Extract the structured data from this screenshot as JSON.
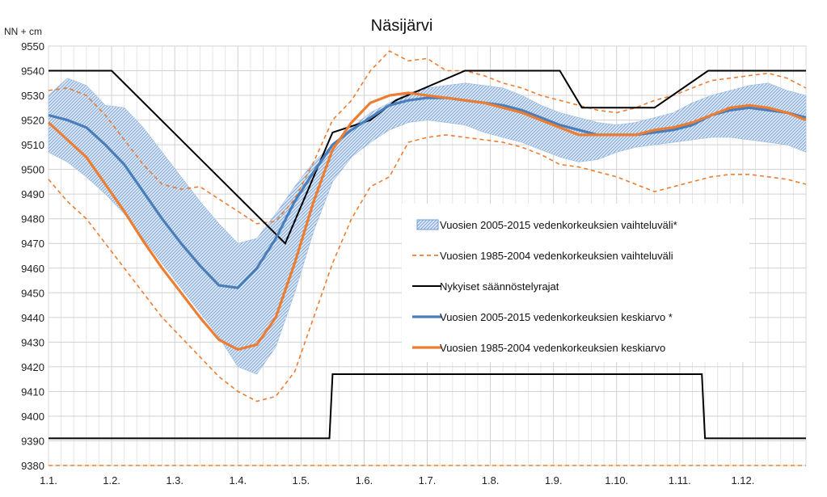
{
  "chart_data": {
    "type": "line",
    "title": "Näsijärvi",
    "ylabel": "NN + cm",
    "ylim": [
      9380,
      9550
    ],
    "yticks": [
      9380,
      9390,
      9400,
      9410,
      9420,
      9430,
      9440,
      9450,
      9460,
      9470,
      9480,
      9490,
      9500,
      9510,
      9520,
      9530,
      9540,
      9550
    ],
    "xlim": [
      0,
      12
    ],
    "categories": [
      "1.1.",
      "1.2.",
      "1.3.",
      "1.4.",
      "1.5.",
      "1.6.",
      "1.7.",
      "1.8.",
      "1.9.",
      "1.10.",
      "1.11.",
      "1.12."
    ],
    "grid": true,
    "legend_position": "center-right",
    "series": [
      {
        "name": "Vuosien 2005-2015 vedenkorkeuksien vaihteluväli*",
        "kind": "band",
        "color": "#4a7ebb",
        "fill": "#c9dcf0",
        "x": [
          0,
          0.3,
          0.6,
          0.9,
          1.2,
          1.5,
          1.8,
          2.1,
          2.4,
          2.7,
          3.0,
          3.3,
          3.6,
          3.9,
          4.2,
          4.5,
          4.8,
          5.1,
          5.4,
          5.7,
          6.0,
          6.3,
          6.6,
          6.9,
          7.2,
          7.5,
          7.8,
          8.1,
          8.4,
          8.7,
          9.0,
          9.3,
          9.6,
          9.9,
          10.2,
          10.5,
          10.8,
          11.1,
          11.4,
          11.7,
          12.0
        ],
        "upper": [
          9530,
          9537,
          9534,
          9526,
          9525,
          9517,
          9507,
          9497,
          9487,
          9478,
          9470,
          9472,
          9482,
          9493,
          9503,
          9510,
          9517,
          9523,
          9527,
          9531,
          9533,
          9534,
          9535,
          9534,
          9533,
          9530,
          9526,
          9523,
          9521,
          9519,
          9518,
          9519,
          9521,
          9523,
          9527,
          9530,
          9532,
          9534,
          9535,
          9532,
          9530
        ],
        "lower": [
          9507,
          9503,
          9497,
          9490,
          9482,
          9472,
          9462,
          9452,
          9442,
          9432,
          9420,
          9417,
          9428,
          9450,
          9475,
          9495,
          9505,
          9511,
          9516,
          9519,
          9520,
          9519,
          9518,
          9515,
          9513,
          9511,
          9508,
          9505,
          9503,
          9504,
          9507,
          9509,
          9510,
          9511,
          9512,
          9513,
          9513,
          9512,
          9511,
          9510,
          9507
        ]
      },
      {
        "name": "Vuosien 1985-2004 vedenkorkeuksien vaihteluväli",
        "kind": "dashed-range",
        "color": "#ed7d31",
        "x": [
          0,
          0.3,
          0.6,
          0.9,
          1.2,
          1.5,
          1.8,
          2.1,
          2.4,
          2.7,
          3.0,
          3.3,
          3.6,
          3.9,
          4.2,
          4.5,
          4.8,
          5.1,
          5.4,
          5.7,
          6.0,
          6.3,
          6.6,
          6.9,
          7.2,
          7.5,
          7.8,
          8.1,
          8.4,
          8.7,
          9.0,
          9.3,
          9.6,
          9.9,
          10.2,
          10.5,
          10.8,
          11.1,
          11.4,
          11.7,
          12.0
        ],
        "upper": [
          9532,
          9533,
          9530,
          9522,
          9512,
          9502,
          9494,
          9492,
          9493,
          9488,
          9483,
          9478,
          9479,
          9488,
          9503,
          9520,
          9528,
          9540,
          9548,
          9544,
          9545,
          9540,
          9540,
          9538,
          9535,
          9533,
          9530,
          9528,
          9526,
          9524,
          9523,
          9525,
          9528,
          9530,
          9533,
          9536,
          9537,
          9538,
          9539,
          9537,
          9533
        ],
        "lower": [
          9496,
          9487,
          9480,
          9470,
          9460,
          9450,
          9440,
          9432,
          9424,
          9416,
          9410,
          9406,
          9408,
          9418,
          9440,
          9462,
          9480,
          9493,
          9497,
          9511,
          9513,
          9514,
          9513,
          9512,
          9511,
          9509,
          9506,
          9502,
          9501,
          9499,
          9497,
          9494,
          9491,
          9493,
          9495,
          9497,
          9498,
          9498,
          9497,
          9496,
          9494
        ]
      },
      {
        "name": "Nykyiset säännöstelyrajat",
        "kind": "line",
        "color": "#000000",
        "segments": [
          {
            "x": [
              0,
              1.0,
              3.75,
              4.5,
              5.1,
              5.5,
              6.6,
              8.1,
              8.45,
              9.25,
              9.6,
              10.45,
              12.0
            ],
            "y": [
              9540,
              9540,
              9470,
              9515,
              9520,
              9528,
              9540,
              9540,
              9525,
              9525,
              9525,
              9540,
              9540
            ]
          },
          {
            "x": [
              0,
              4.45,
              4.5,
              10.35,
              10.4,
              12.0
            ],
            "y": [
              9391,
              9391,
              9417,
              9417,
              9391,
              9391
            ]
          }
        ]
      },
      {
        "name": "Vuosien 2005-2015 vedenkorkeuksien keskiarvo *",
        "kind": "line",
        "color": "#4a7ebb",
        "x": [
          0,
          0.3,
          0.6,
          0.9,
          1.2,
          1.5,
          1.8,
          2.1,
          2.4,
          2.7,
          3.0,
          3.3,
          3.6,
          3.9,
          4.2,
          4.5,
          4.8,
          5.1,
          5.4,
          5.7,
          6.0,
          6.3,
          6.6,
          6.9,
          7.2,
          7.5,
          7.8,
          8.1,
          8.4,
          8.7,
          9.0,
          9.3,
          9.6,
          9.9,
          10.2,
          10.5,
          10.8,
          11.1,
          11.4,
          11.7,
          12.0
        ],
        "y": [
          9522,
          9520,
          9517,
          9510,
          9502,
          9491,
          9480,
          9470,
          9461,
          9453,
          9452,
          9460,
          9472,
          9487,
          9499,
          9510,
          9516,
          9521,
          9526,
          9528,
          9529,
          9529,
          9528,
          9527,
          9526,
          9524,
          9521,
          9518,
          9516,
          9514,
          9514,
          9514,
          9515,
          9516,
          9518,
          9522,
          9524,
          9525,
          9524,
          9523,
          9521
        ]
      },
      {
        "name": "Vuosien 1985-2004 vedenkorkeuksien keskiarvo",
        "kind": "line",
        "color": "#ed7d31",
        "x": [
          0,
          0.3,
          0.6,
          0.9,
          1.2,
          1.5,
          1.8,
          2.1,
          2.4,
          2.7,
          3.0,
          3.3,
          3.6,
          3.9,
          4.2,
          4.5,
          4.8,
          5.1,
          5.4,
          5.7,
          6.0,
          6.3,
          6.6,
          6.9,
          7.2,
          7.5,
          7.8,
          8.1,
          8.4,
          8.7,
          9.0,
          9.3,
          9.6,
          9.9,
          10.2,
          10.5,
          10.8,
          11.1,
          11.4,
          11.7,
          12.0
        ],
        "y": [
          9519,
          9512,
          9505,
          9494,
          9483,
          9471,
          9460,
          9450,
          9440,
          9431,
          9427,
          9429,
          9440,
          9462,
          9487,
          9508,
          9519,
          9527,
          9530,
          9531,
          9530,
          9529,
          9528,
          9527,
          9525,
          9523,
          9520,
          9517,
          9514,
          9514,
          9514,
          9514,
          9516,
          9517,
          9519,
          9522,
          9525,
          9526,
          9525,
          9523,
          9520
        ]
      }
    ]
  }
}
